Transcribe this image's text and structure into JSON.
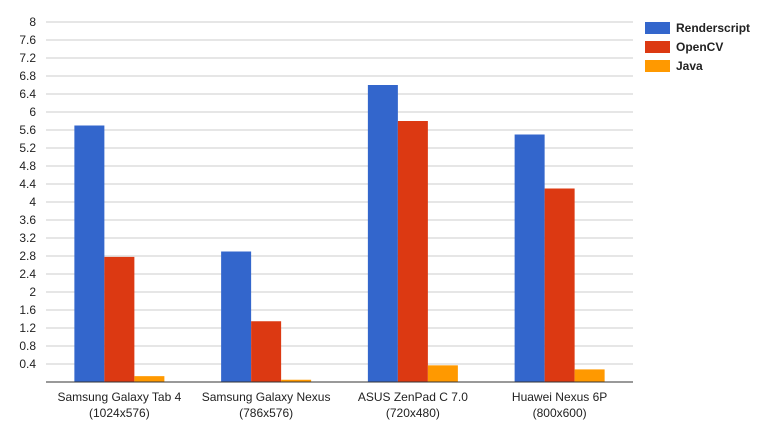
{
  "chart_data": {
    "type": "bar",
    "categories": [
      [
        "Samsung Galaxy Tab 4",
        "(1024x576)"
      ],
      [
        "Samsung Galaxy Nexus",
        "(786x576)"
      ],
      [
        "ASUS ZenPad C 7.0",
        "(720x480)"
      ],
      [
        "Huawei Nexus 6P",
        "(800x600)"
      ]
    ],
    "series": [
      {
        "name": "Renderscript",
        "color": "#3366cc",
        "values": [
          5.7,
          2.9,
          6.6,
          5.5
        ]
      },
      {
        "name": "OpenCV",
        "color": "#dc3912",
        "values": [
          2.78,
          1.35,
          5.8,
          4.3
        ]
      },
      {
        "name": "Java",
        "color": "#ff9900",
        "values": [
          0.13,
          0.05,
          0.37,
          0.28
        ]
      }
    ],
    "yticks": [
      "0.4",
      "0.8",
      "1.2",
      "1.6",
      "2",
      "2.4",
      "2.8",
      "3.2",
      "3.6",
      "4",
      "4.4",
      "4.8",
      "5.2",
      "5.6",
      "6",
      "6.4",
      "6.8",
      "7.2",
      "7.6",
      "8"
    ],
    "ylim": [
      0,
      8
    ],
    "grid": true,
    "legend_position": "right",
    "title": "",
    "xlabel": "",
    "ylabel": ""
  }
}
